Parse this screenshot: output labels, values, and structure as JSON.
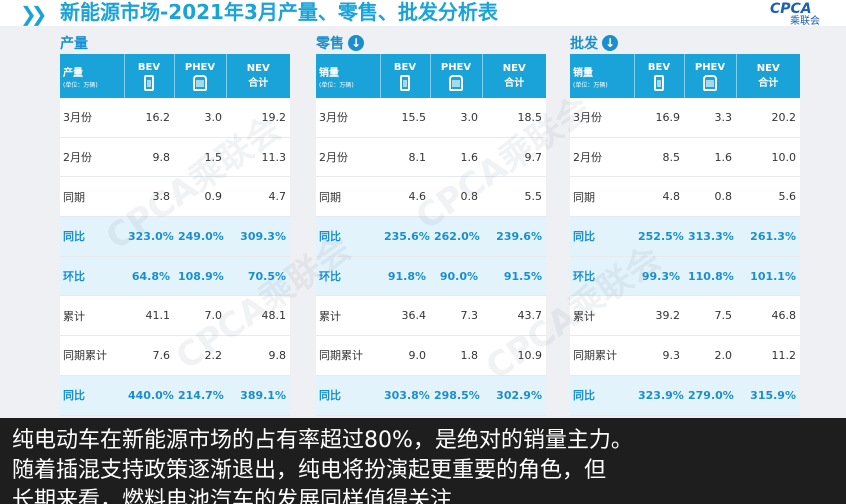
{
  "header": {
    "chevrons": "❯❯",
    "title": "新能源市场-2021年3月产量、零售、批发分析表",
    "logo_mark": "CPCA",
    "logo_sub": "乘联会"
  },
  "watermark_text": "CPCA乘联会",
  "column_headers": {
    "bev": "BEV",
    "phev": "PHEV",
    "nev_line1": "NEV",
    "nev_line2": "合计",
    "unit": "(单位：万辆)"
  },
  "panels": [
    {
      "title": "产量",
      "first_col_header": "产量",
      "rows": [
        {
          "label": "3月份",
          "bev": "16.2",
          "phev": "3.0",
          "nev": "19.2",
          "highlight": false
        },
        {
          "label": "2月份",
          "bev": "9.8",
          "phev": "1.5",
          "nev": "11.3",
          "highlight": false
        },
        {
          "label": "同期",
          "bev": "3.8",
          "phev": "0.9",
          "nev": "4.7",
          "highlight": false
        },
        {
          "label": "同比",
          "bev": "323.0%",
          "phev": "249.0%",
          "nev": "309.3%",
          "highlight": true
        },
        {
          "label": "环比",
          "bev": "64.8%",
          "phev": "108.9%",
          "nev": "70.5%",
          "highlight": true
        },
        {
          "label": "累计",
          "bev": "41.1",
          "phev": "7.0",
          "nev": "48.1",
          "highlight": false
        },
        {
          "label": "同期累计",
          "bev": "7.6",
          "phev": "2.2",
          "nev": "9.8",
          "highlight": false
        },
        {
          "label": "同比",
          "bev": "440.0%",
          "phev": "214.7%",
          "nev": "389.1%",
          "highlight": true
        }
      ]
    },
    {
      "title": "零售",
      "first_col_header": "销量",
      "rows": [
        {
          "label": "3月份",
          "bev": "15.5",
          "phev": "3.0",
          "nev": "18.5",
          "highlight": false
        },
        {
          "label": "2月份",
          "bev": "8.1",
          "phev": "1.6",
          "nev": "9.7",
          "highlight": false
        },
        {
          "label": "同期",
          "bev": "4.6",
          "phev": "0.8",
          "nev": "5.5",
          "highlight": false
        },
        {
          "label": "同比",
          "bev": "235.6%",
          "phev": "262.0%",
          "nev": "239.6%",
          "highlight": true
        },
        {
          "label": "环比",
          "bev": "91.8%",
          "phev": "90.0%",
          "nev": "91.5%",
          "highlight": true
        },
        {
          "label": "累计",
          "bev": "36.4",
          "phev": "7.3",
          "nev": "43.7",
          "highlight": false
        },
        {
          "label": "同期累计",
          "bev": "9.0",
          "phev": "1.8",
          "nev": "10.9",
          "highlight": false
        },
        {
          "label": "同比",
          "bev": "303.8%",
          "phev": "298.5%",
          "nev": "302.9%",
          "highlight": true
        }
      ]
    },
    {
      "title": "批发",
      "first_col_header": "销量",
      "rows": [
        {
          "label": "3月份",
          "bev": "16.9",
          "phev": "3.3",
          "nev": "20.2",
          "highlight": false
        },
        {
          "label": "2月份",
          "bev": "8.5",
          "phev": "1.6",
          "nev": "10.0",
          "highlight": false
        },
        {
          "label": "同期",
          "bev": "4.8",
          "phev": "0.8",
          "nev": "5.6",
          "highlight": false
        },
        {
          "label": "同比",
          "bev": "252.5%",
          "phev": "313.3%",
          "nev": "261.3%",
          "highlight": true
        },
        {
          "label": "环比",
          "bev": "99.3%",
          "phev": "110.8%",
          "nev": "101.1%",
          "highlight": true
        },
        {
          "label": "累计",
          "bev": "39.2",
          "phev": "7.5",
          "nev": "46.8",
          "highlight": false
        },
        {
          "label": "同期累计",
          "bev": "9.3",
          "phev": "2.0",
          "nev": "11.2",
          "highlight": false
        },
        {
          "label": "同比",
          "bev": "323.9%",
          "phev": "279.0%",
          "nev": "315.9%",
          "highlight": true
        }
      ]
    }
  ],
  "caption": {
    "line1": "纯电动车在新能源市场的占有率超过80%，是绝对的销量主力。",
    "line2": "随着插混支持政策逐渐退出，纯电将扮演起更重要的角色，但",
    "line3": "长期来看，燃料电池汽车的发展同样值得关注"
  },
  "colors": {
    "accent": "#1aa3d8",
    "highlight_row": "#e3f3fb",
    "caption_bg": "#1e1e1e"
  }
}
